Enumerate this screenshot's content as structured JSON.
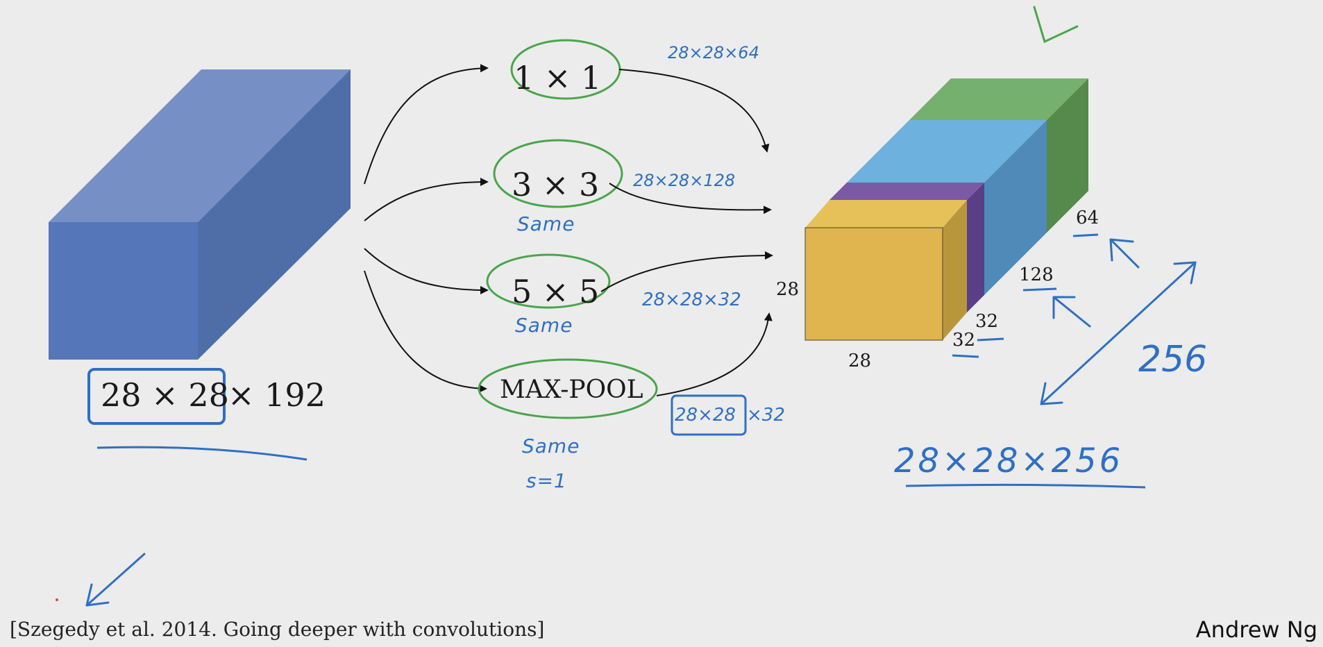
{
  "input": {
    "dims_boxed": "28 × 28",
    "dims_rest": "× 192"
  },
  "branches": [
    {
      "op": "1 × 1",
      "out_note": "28×28×64"
    },
    {
      "op": "3 × 3",
      "out_note": "28×28×128",
      "pad_note": "Same"
    },
    {
      "op": "5 × 5",
      "out_note": "28×28×32",
      "pad_note": "Same"
    },
    {
      "op": "MAX-POOL",
      "out_note_boxed": "28×28",
      "out_note_rest": "×32",
      "pad_note": "Same",
      "stride_note": "s=1"
    }
  ],
  "output_block": {
    "labels": {
      "height": "28",
      "width": "28",
      "d1": "32",
      "d2": "32",
      "d3": "128",
      "d4": "64"
    },
    "total_depth": "256",
    "result": "28×28×256",
    "colors": {
      "yellow": "#e0b44e",
      "purple": "#7a5aa5",
      "blue": "#6db1de",
      "green": "#76b06f",
      "input_front": "#5577b9"
    }
  },
  "footer": {
    "citation": "[Szegedy et al. 2014. Going deeper with convolutions]",
    "author": "Andrew Ng"
  }
}
